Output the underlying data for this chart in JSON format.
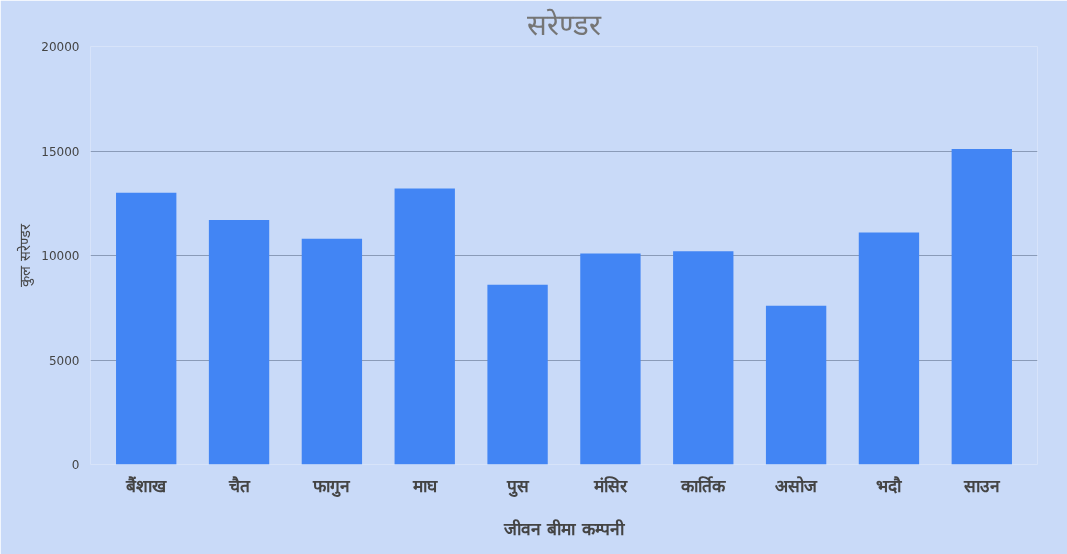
{
  "chart_data": {
    "type": "bar",
    "title": "सरेण्डर",
    "xlabel": "जीवन बीमा कम्पनी",
    "ylabel": "कुल सरेण्डर",
    "categories": [
      "बैंशाख",
      "चैत",
      "फागुन",
      "माघ",
      "पुस",
      "मंसिर",
      "कार्तिक",
      "असोज",
      "भदौ",
      "साउन"
    ],
    "values": [
      13000,
      11700,
      10800,
      13200,
      8600,
      10100,
      10200,
      7600,
      11100,
      15100
    ],
    "color": "#4285f4",
    "ylim": [
      0,
      20000
    ],
    "yticks": [
      0,
      5000,
      10000,
      15000,
      20000
    ],
    "grid": "y"
  }
}
